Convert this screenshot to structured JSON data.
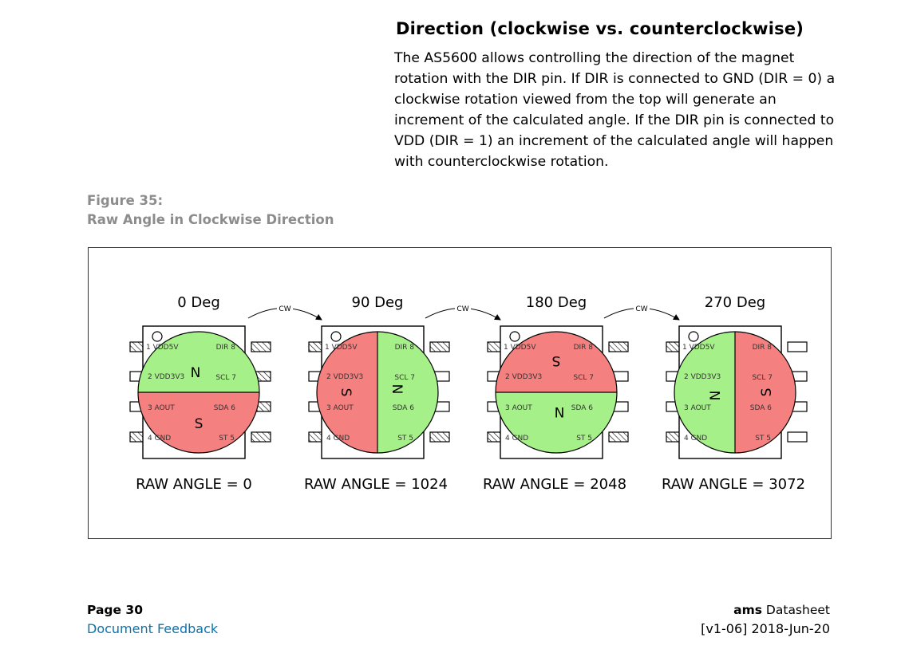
{
  "section": {
    "heading": "Direction (clockwise vs. counterclockwise)",
    "body": "The AS5600 allows controlling the direction of the magnet rotation with the DIR pin. If DIR is connected to GND (DIR = 0) a clockwise rotation viewed from the top will generate an increment of the calculated angle. If the DIR pin is connected to VDD (DIR = 1) an increment of the calculated angle will happen with counterclockwise rotation."
  },
  "figure": {
    "caption_number": "Figure 35:",
    "caption_title": "Raw Angle in Clockwise Direction",
    "arrow_label": "CW",
    "pins": {
      "p1": "1 VDD5V",
      "p2": "2 VDD3V3",
      "p3": "3 AOUT",
      "p4": "4 GND",
      "p5": "ST 5",
      "p6": "SDA 6",
      "p7": "SCL 7",
      "p8": "DIR 8"
    },
    "colors": {
      "north": "#a6f08a",
      "south": "#f58080"
    },
    "chips": [
      {
        "angle_label": "0 Deg",
        "raw_label": "RAW ANGLE = 0",
        "rotation_deg": 0,
        "raw_value": 0
      },
      {
        "angle_label": "90 Deg",
        "raw_label": "RAW ANGLE = 1024",
        "rotation_deg": 90,
        "raw_value": 1024
      },
      {
        "angle_label": "180 Deg",
        "raw_label": "RAW ANGLE = 2048",
        "rotation_deg": 180,
        "raw_value": 2048
      },
      {
        "angle_label": "270 Deg",
        "raw_label": "RAW ANGLE = 3072",
        "rotation_deg": 270,
        "raw_value": 3072
      }
    ]
  },
  "footer": {
    "page": "Page 30",
    "feedback_link": "Document Feedback",
    "brand_bold": "ams",
    "brand_rest": " Datasheet",
    "version": "[v1-06] 2018-Jun-20"
  }
}
